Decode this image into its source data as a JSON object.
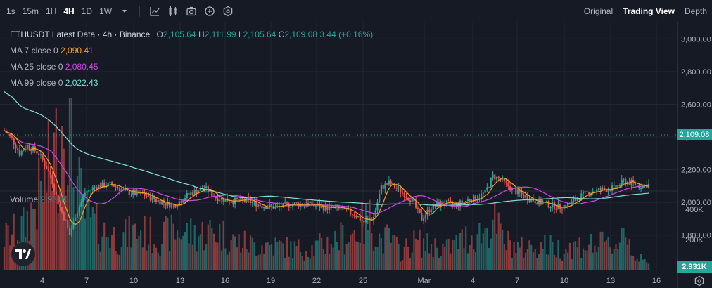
{
  "toolbar": {
    "timeframes": [
      {
        "label": "1s",
        "active": false
      },
      {
        "label": "15m",
        "active": false
      },
      {
        "label": "1H",
        "active": false
      },
      {
        "label": "4H",
        "active": true
      },
      {
        "label": "1D",
        "active": false
      },
      {
        "label": "1W",
        "active": false
      }
    ],
    "timeframe_menu_icon": "chevron-down-icon",
    "tools": [
      "indicator-chart-icon",
      "candle-style-icon",
      "camera-icon",
      "add-icon",
      "settings-hex-icon"
    ],
    "views": [
      {
        "label": "Original",
        "active": false
      },
      {
        "label": "Trading View",
        "active": true
      },
      {
        "label": "Depth",
        "active": false
      }
    ]
  },
  "legend": {
    "title": "ETHUSDT Latest Data · 4h · Binance",
    "ohlc": {
      "o_label": "O",
      "o": "2,105.64",
      "h_label": "H",
      "h": "2,111.99",
      "l_label": "L",
      "l": "2,105.64",
      "c_label": "C",
      "c": "2,109.08",
      "change": "3.44 (+0.16%)"
    },
    "ma": [
      {
        "label": "MA 7 close 0",
        "value": "2,090.41",
        "color": "#f7a21b"
      },
      {
        "label": "MA 25 close 0",
        "value": "2,080.45",
        "color": "#d047e8"
      },
      {
        "label": "MA 99 close 0",
        "value": "2,022.43",
        "color": "#7fe0d8"
      }
    ],
    "volume_label": "Volume",
    "volume_value": "2.931K"
  },
  "colors": {
    "up": "#26a69a",
    "down": "#ef5350",
    "background": "#161a25",
    "grid": "#232632"
  },
  "last_price_tag": "2,109.08",
  "last_volume_tag": "2.931K",
  "chart_data": {
    "type": "candlestick",
    "symbol": "ETHUSDT",
    "interval": "4h",
    "price_axis": {
      "ticks": [
        "3,000.00",
        "2,800.00",
        "2,600.00",
        "2,400.00",
        "2,200.00",
        "2,000.00",
        "1,800.00"
      ],
      "ylim": [
        1640,
        3100
      ]
    },
    "volume_axis": {
      "ticks": [
        "400K",
        "200K"
      ],
      "ylim": [
        0,
        560
      ]
    },
    "x_ticks": [
      "4",
      "7",
      "10",
      "13",
      "16",
      "19",
      "22",
      "25",
      "Mar",
      "4",
      "7",
      "10",
      "13",
      "16"
    ],
    "ma_series": [
      {
        "name": "MA 7",
        "last": 2090.41
      },
      {
        "name": "MA 25",
        "last": 2080.45
      },
      {
        "name": "MA 99",
        "last": 2022.43
      }
    ],
    "price_anchors": [
      [
        0,
        2440
      ],
      [
        4,
        2390
      ],
      [
        8,
        2300
      ],
      [
        12,
        2350
      ],
      [
        18,
        2300
      ],
      [
        24,
        2170
      ],
      [
        28,
        2000
      ],
      [
        32,
        1880
      ],
      [
        34,
        1800
      ],
      [
        37,
        1920
      ],
      [
        42,
        2060
      ],
      [
        48,
        2100
      ],
      [
        56,
        2110
      ],
      [
        64,
        2060
      ],
      [
        72,
        2050
      ],
      [
        80,
        2010
      ],
      [
        88,
        1980
      ],
      [
        96,
        2050
      ],
      [
        104,
        2090
      ],
      [
        110,
        2030
      ],
      [
        118,
        2010
      ],
      [
        126,
        2010
      ],
      [
        134,
        1980
      ],
      [
        142,
        1970
      ],
      [
        150,
        1990
      ],
      [
        158,
        1990
      ],
      [
        166,
        1970
      ],
      [
        174,
        1960
      ],
      [
        182,
        1930
      ],
      [
        187,
        1880
      ],
      [
        192,
        1910
      ],
      [
        196,
        2090
      ],
      [
        200,
        2120
      ],
      [
        206,
        2070
      ],
      [
        212,
        2010
      ],
      [
        217,
        1900
      ],
      [
        222,
        1970
      ],
      [
        228,
        2000
      ],
      [
        234,
        1980
      ],
      [
        240,
        2010
      ],
      [
        246,
        2030
      ],
      [
        250,
        2060
      ],
      [
        254,
        2160
      ],
      [
        258,
        2140
      ],
      [
        264,
        2080
      ],
      [
        270,
        2040
      ],
      [
        276,
        2010
      ],
      [
        282,
        1990
      ],
      [
        288,
        1970
      ],
      [
        294,
        1990
      ],
      [
        300,
        2040
      ],
      [
        306,
        2070
      ],
      [
        312,
        2080
      ],
      [
        318,
        2090
      ],
      [
        322,
        2130
      ],
      [
        326,
        2120
      ],
      [
        330,
        2100
      ],
      [
        335,
        2109
      ]
    ],
    "volume_anchors": [
      [
        0,
        90
      ],
      [
        10,
        120
      ],
      [
        20,
        230
      ],
      [
        28,
        350
      ],
      [
        32,
        480
      ],
      [
        36,
        280
      ],
      [
        42,
        160
      ],
      [
        50,
        110
      ],
      [
        60,
        90
      ],
      [
        70,
        110
      ],
      [
        80,
        90
      ],
      [
        90,
        110
      ],
      [
        100,
        100
      ],
      [
        110,
        110
      ],
      [
        120,
        80
      ],
      [
        130,
        70
      ],
      [
        140,
        70
      ],
      [
        150,
        60
      ],
      [
        160,
        60
      ],
      [
        170,
        80
      ],
      [
        180,
        100
      ],
      [
        190,
        140
      ],
      [
        196,
        80
      ],
      [
        200,
        90
      ],
      [
        206,
        50
      ],
      [
        214,
        80
      ],
      [
        220,
        70
      ],
      [
        230,
        60
      ],
      [
        240,
        90
      ],
      [
        246,
        100
      ],
      [
        250,
        110
      ],
      [
        254,
        140
      ],
      [
        260,
        80
      ],
      [
        268,
        60
      ],
      [
        280,
        70
      ],
      [
        290,
        60
      ],
      [
        300,
        70
      ],
      [
        310,
        70
      ],
      [
        318,
        70
      ],
      [
        322,
        120
      ],
      [
        328,
        40
      ],
      [
        335,
        15
      ]
    ]
  }
}
